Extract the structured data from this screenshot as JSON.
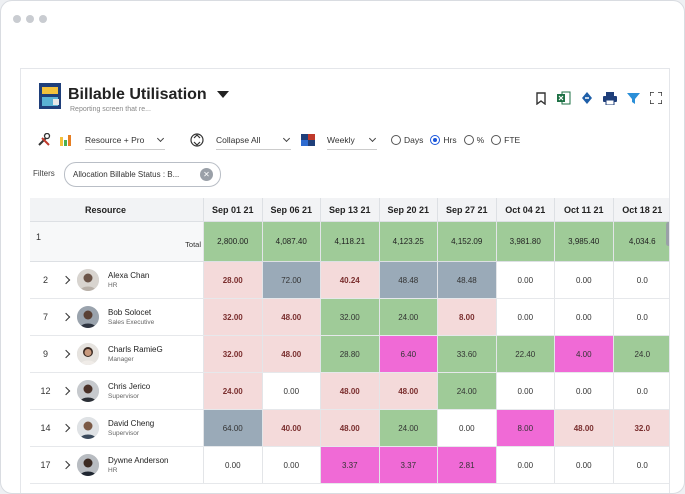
{
  "app": {
    "title": "Billable Utilisation",
    "subtitle": "Reporting screen that re..."
  },
  "toolbar": {
    "group_by": "Resource + Pro",
    "collapse": "Collapse All",
    "period": "Weekly",
    "units": [
      {
        "label": "Days",
        "checked": false
      },
      {
        "label": "Hrs",
        "checked": true
      },
      {
        "label": "%",
        "checked": false
      },
      {
        "label": "FTE",
        "checked": false
      }
    ]
  },
  "filters": {
    "label": "Filters",
    "chip": "Allocation Billable Status : B..."
  },
  "grid": {
    "resource_header": "Resource",
    "columns": [
      "Sep 01 21",
      "Sep 06 21",
      "Sep 13 21",
      "Sep 20 21",
      "Sep 27 21",
      "Oct 04 21",
      "Oct 11 21",
      "Oct 18 21"
    ],
    "total": {
      "num": "1",
      "label": "Total",
      "values": [
        "2,800.00",
        "4,087.40",
        "4,118.21",
        "4,123.25",
        "4,152.09",
        "3,981.80",
        "3,985.40",
        "4,034.6"
      ]
    },
    "rows": [
      {
        "num": "2",
        "name": "Alexa Chan",
        "role": "HR",
        "values": [
          "28.00",
          "72.00",
          "40.24",
          "48.48",
          "48.48",
          "0.00",
          "0.00",
          "0.0"
        ]
      },
      {
        "num": "7",
        "name": "Bob Solocet",
        "role": "Sales Executive",
        "values": [
          "32.00",
          "48.00",
          "32.00",
          "24.00",
          "8.00",
          "0.00",
          "0.00",
          "0.0"
        ]
      },
      {
        "num": "9",
        "name": "Charls RamieG",
        "role": "Manager",
        "values": [
          "32.00",
          "48.00",
          "28.80",
          "6.40",
          "33.60",
          "22.40",
          "4.00",
          "24.0"
        ]
      },
      {
        "num": "12",
        "name": "Chris Jerico",
        "role": "Supervisor",
        "values": [
          "24.00",
          "0.00",
          "48.00",
          "48.00",
          "24.00",
          "0.00",
          "0.00",
          "0.0"
        ]
      },
      {
        "num": "14",
        "name": "David Cheng",
        "role": "Supervisor",
        "values": [
          "64.00",
          "40.00",
          "48.00",
          "24.00",
          "0.00",
          "8.00",
          "48.00",
          "32.0"
        ]
      },
      {
        "num": "17",
        "name": "Dywne Anderson",
        "role": "HR",
        "values": [
          "0.00",
          "0.00",
          "3.37",
          "3.37",
          "2.81",
          "0.00",
          "0.00",
          "0.0"
        ]
      }
    ]
  },
  "colors": {
    "green": "#9fcb98",
    "pink": "#f4dada",
    "slate": "#9aaab8",
    "magenta": "#f06ad6",
    "white": "#ffffff",
    "accent": "#1a56db"
  },
  "cell_colors": [
    [
      "pink",
      "slate",
      "pink",
      "slate",
      "slate",
      "white",
      "white",
      "white"
    ],
    [
      "pink",
      "pink",
      "green",
      "green",
      "pink",
      "white",
      "white",
      "white"
    ],
    [
      "pink",
      "pink",
      "green",
      "magenta",
      "green",
      "green",
      "magenta",
      "green"
    ],
    [
      "pink",
      "white",
      "pink",
      "pink",
      "green",
      "white",
      "white",
      "white"
    ],
    [
      "slate",
      "pink",
      "pink",
      "green",
      "white",
      "magenta",
      "pink",
      "pink"
    ],
    [
      "white",
      "white",
      "magenta",
      "magenta",
      "magenta",
      "white",
      "white",
      "white"
    ]
  ],
  "bold_cells": [
    [
      true,
      false,
      true,
      false,
      false,
      false,
      false,
      false
    ],
    [
      true,
      true,
      false,
      false,
      true,
      false,
      false,
      false
    ],
    [
      true,
      true,
      false,
      false,
      false,
      false,
      false,
      false
    ],
    [
      true,
      false,
      true,
      true,
      false,
      false,
      false,
      false
    ],
    [
      false,
      true,
      true,
      false,
      false,
      false,
      true,
      true
    ],
    [
      false,
      false,
      false,
      false,
      false,
      false,
      false,
      false
    ]
  ]
}
